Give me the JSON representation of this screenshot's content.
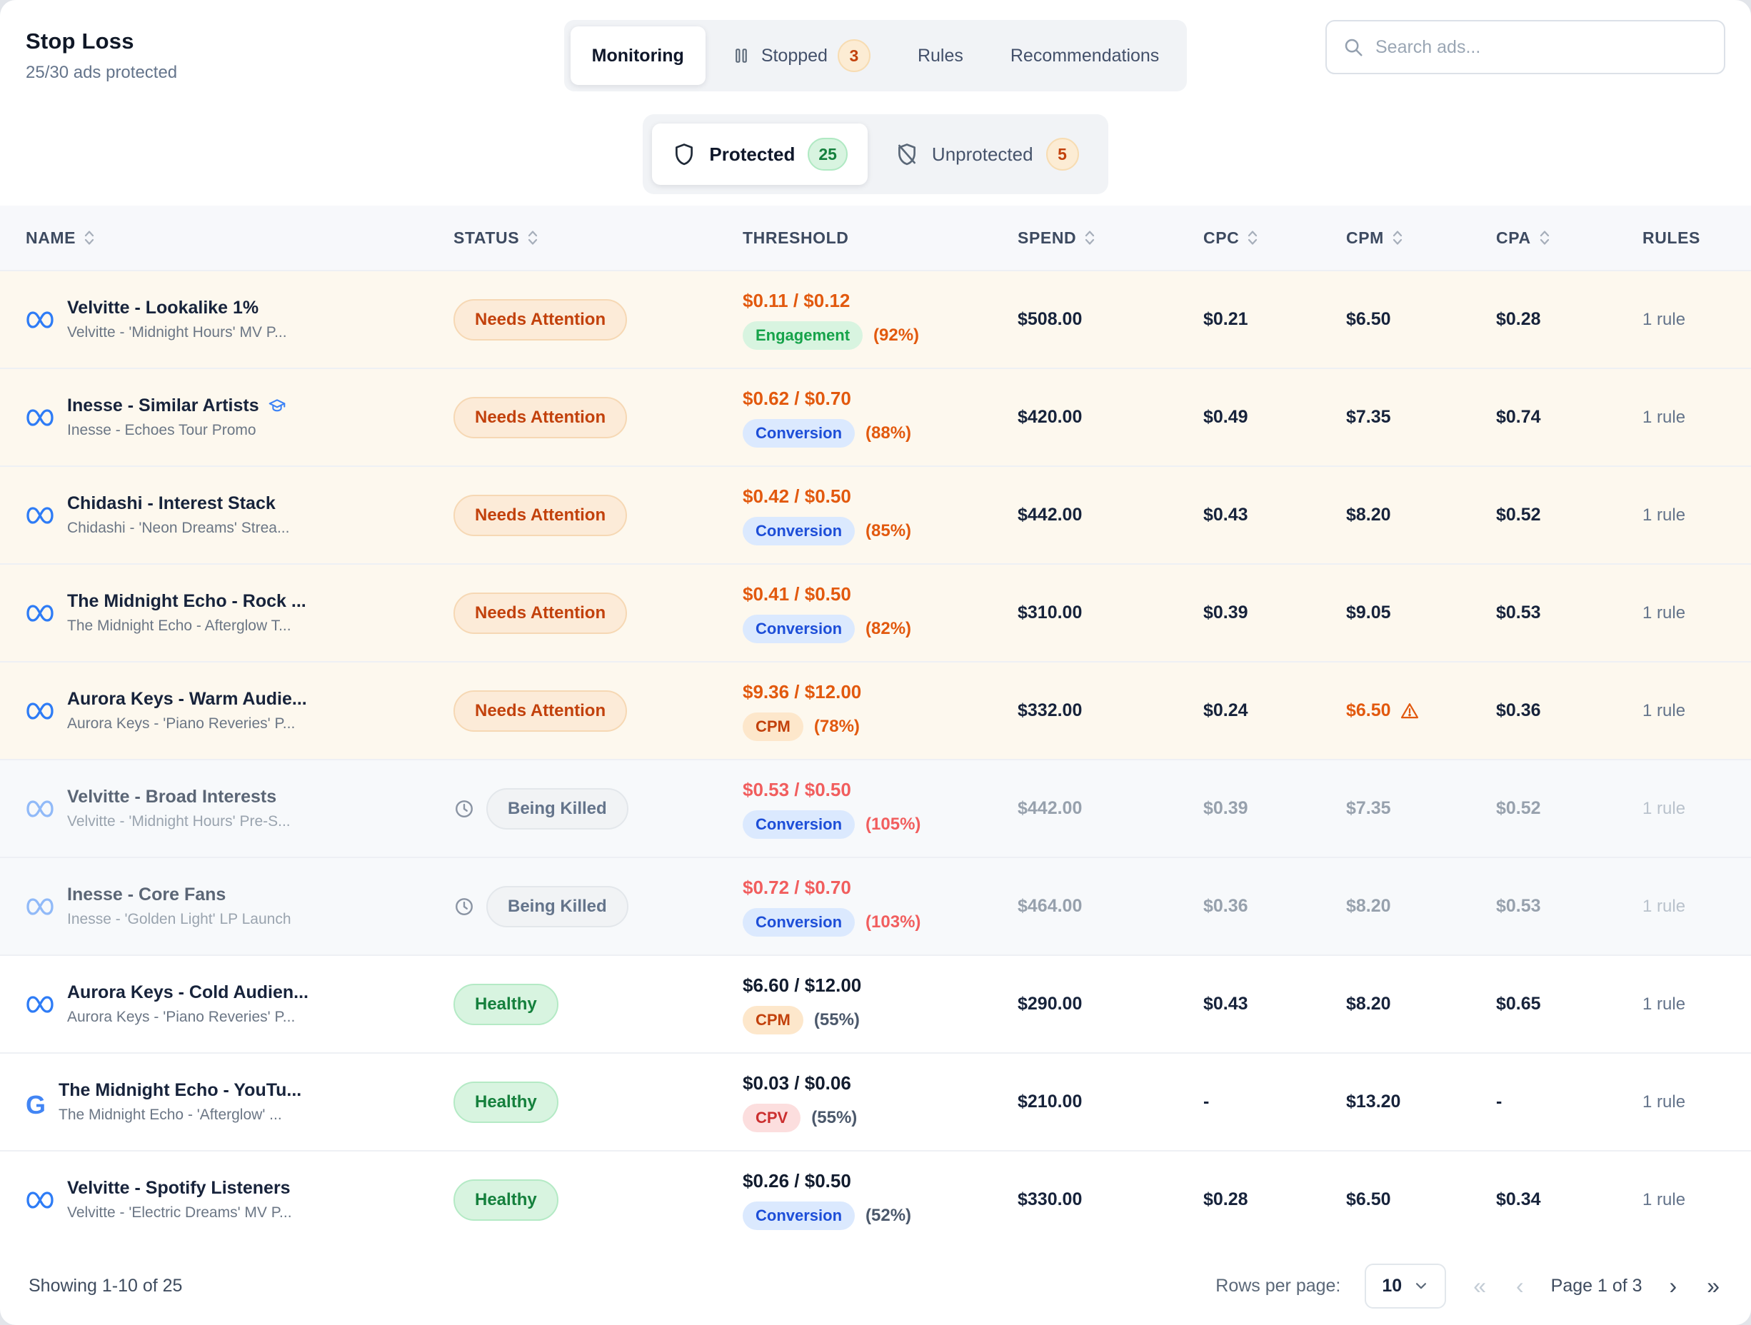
{
  "page": {
    "title": "Stop Loss",
    "subtitle": "25/30 ads protected"
  },
  "tabs": [
    {
      "label": "Monitoring",
      "active": true
    },
    {
      "label": "Stopped",
      "icon": "pause",
      "badge": "3",
      "badge_style": "orange",
      "active": false
    },
    {
      "label": "Rules",
      "active": false
    },
    {
      "label": "Recommendations",
      "active": false
    }
  ],
  "search": {
    "placeholder": "Search ads..."
  },
  "filters": [
    {
      "label": "Protected",
      "icon": "shield",
      "count": "25",
      "count_style": "green",
      "active": true
    },
    {
      "label": "Unprotected",
      "icon": "shield-off",
      "count": "5",
      "count_style": "orange",
      "active": false
    }
  ],
  "table": {
    "columns": [
      {
        "label": "NAME",
        "sortable": true
      },
      {
        "label": "STATUS",
        "sortable": true
      },
      {
        "label": "THRESHOLD",
        "sortable": false
      },
      {
        "label": "SPEND",
        "sortable": true
      },
      {
        "label": "CPC",
        "sortable": true
      },
      {
        "label": "CPM",
        "sortable": true
      },
      {
        "label": "CPA",
        "sortable": true
      },
      {
        "label": "RULES",
        "sortable": false
      }
    ],
    "rows": [
      {
        "platform": "meta",
        "name": "Velvitte - Lookalike 1%",
        "subtitle": "Velvitte - 'Midnight Hours' MV P...",
        "status": "Needs Attention",
        "tone": "warning",
        "threshold": "$0.11 / $0.12",
        "metric": "Engagement",
        "metric_style": "green",
        "percent": "(92%)",
        "spend": "$508.00",
        "cpc": "$0.21",
        "cpm": "$6.50",
        "cpa": "$0.28",
        "rules": "1 rule"
      },
      {
        "platform": "meta",
        "name": "Inesse - Similar Artists",
        "name_icon": "learning",
        "subtitle": "Inesse - Echoes Tour Promo",
        "status": "Needs Attention",
        "tone": "warning",
        "threshold": "$0.62 / $0.70",
        "metric": "Conversion",
        "metric_style": "blue",
        "percent": "(88%)",
        "spend": "$420.00",
        "cpc": "$0.49",
        "cpm": "$7.35",
        "cpa": "$0.74",
        "rules": "1 rule"
      },
      {
        "platform": "meta",
        "name": "Chidashi - Interest Stack",
        "subtitle": "Chidashi - 'Neon Dreams' Strea...",
        "status": "Needs Attention",
        "tone": "warning",
        "threshold": "$0.42 / $0.50",
        "metric": "Conversion",
        "metric_style": "blue",
        "percent": "(85%)",
        "spend": "$442.00",
        "cpc": "$0.43",
        "cpm": "$8.20",
        "cpa": "$0.52",
        "rules": "1 rule"
      },
      {
        "platform": "meta",
        "name": "The Midnight Echo - Rock ...",
        "subtitle": "The Midnight Echo - Afterglow T...",
        "status": "Needs Attention",
        "tone": "warning",
        "threshold": "$0.41 / $0.50",
        "metric": "Conversion",
        "metric_style": "blue",
        "percent": "(82%)",
        "spend": "$310.00",
        "cpc": "$0.39",
        "cpm": "$9.05",
        "cpa": "$0.53",
        "rules": "1 rule"
      },
      {
        "platform": "meta",
        "name": "Aurora Keys - Warm Audie...",
        "subtitle": "Aurora Keys - 'Piano Reveries' P...",
        "status": "Needs Attention",
        "tone": "warning",
        "threshold": "$9.36 / $12.00",
        "metric": "CPM",
        "metric_style": "orange",
        "percent": "(78%)",
        "spend": "$332.00",
        "cpc": "$0.24",
        "cpm": "$6.50",
        "cpm_warning": true,
        "cpa": "$0.36",
        "rules": "1 rule"
      },
      {
        "platform": "meta",
        "name": "Velvitte - Broad Interests",
        "subtitle": "Velvitte - 'Midnight Hours' Pre-S...",
        "status": "Being Killed",
        "tone": "killed",
        "threshold": "$0.53 / $0.50",
        "metric": "Conversion",
        "metric_style": "blue",
        "percent": "(105%)",
        "spend": "$442.00",
        "cpc": "$0.39",
        "cpm": "$7.35",
        "cpa": "$0.52",
        "rules": "1 rule"
      },
      {
        "platform": "meta",
        "name": "Inesse - Core Fans",
        "subtitle": "Inesse - 'Golden Light' LP Launch",
        "status": "Being Killed",
        "tone": "killed",
        "threshold": "$0.72 / $0.70",
        "metric": "Conversion",
        "metric_style": "blue",
        "percent": "(103%)",
        "spend": "$464.00",
        "cpc": "$0.36",
        "cpm": "$8.20",
        "cpa": "$0.53",
        "rules": "1 rule"
      },
      {
        "platform": "meta",
        "name": "Aurora Keys - Cold Audien...",
        "subtitle": "Aurora Keys - 'Piano Reveries' P...",
        "status": "Healthy",
        "tone": "healthy",
        "threshold": "$6.60 / $12.00",
        "metric": "CPM",
        "metric_style": "orange",
        "percent": "(55%)",
        "spend": "$290.00",
        "cpc": "$0.43",
        "cpm": "$8.20",
        "cpa": "$0.65",
        "rules": "1 rule"
      },
      {
        "platform": "google",
        "name": "The Midnight Echo - YouTu...",
        "subtitle": "The Midnight Echo - 'Afterglow' ...",
        "status": "Healthy",
        "tone": "healthy",
        "threshold": "$0.03 / $0.06",
        "metric": "CPV",
        "metric_style": "red",
        "percent": "(55%)",
        "spend": "$210.00",
        "cpc": "-",
        "cpm": "$13.20",
        "cpa": "-",
        "rules": "1 rule"
      },
      {
        "platform": "meta",
        "name": "Velvitte - Spotify Listeners",
        "subtitle": "Velvitte - 'Electric Dreams' MV P...",
        "status": "Healthy",
        "tone": "healthy",
        "threshold": "$0.26 / $0.50",
        "metric": "Conversion",
        "metric_style": "blue",
        "percent": "(52%)",
        "spend": "$330.00",
        "cpc": "$0.28",
        "cpm": "$6.50",
        "cpa": "$0.34",
        "rules": "1 rule"
      }
    ]
  },
  "footer": {
    "showing": "Showing 1-10 of 25",
    "rows_per_page_label": "Rows per page:",
    "rows_per_page_value": "10",
    "page_label": "Page 1 of 3"
  },
  "colors": {
    "warning_text": "#c2410c",
    "warning_value": "#e2590e",
    "healthy_text": "#15803d",
    "danger_value": "#f15e5e",
    "conversion_text": "#1d4ed8",
    "meta_blue": "#2e7cf6",
    "google_blue": "#4285f4"
  }
}
